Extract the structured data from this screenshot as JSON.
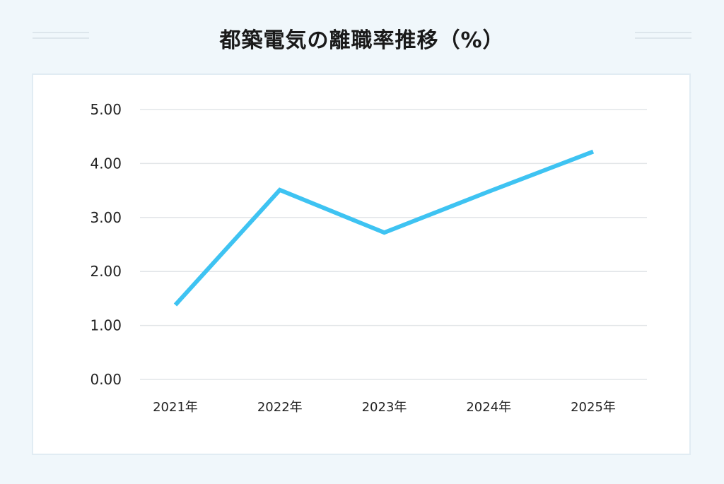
{
  "title": "都築電気の離職率推移（%）",
  "chart_data": {
    "type": "line",
    "title": "都築電気の離職率推移（%）",
    "xlabel": "",
    "ylabel": "",
    "categories": [
      "2021年",
      "2022年",
      "2023年",
      "2024年",
      "2025年"
    ],
    "series": [
      {
        "values": [
          1.38,
          3.51,
          2.72,
          3.48,
          4.22
        ]
      }
    ],
    "ylim": [
      0,
      5
    ],
    "yticks": [
      "0.00",
      "1.00",
      "2.00",
      "3.00",
      "4.00",
      "5.00"
    ],
    "grid": true,
    "legend": "none",
    "line_color": "#3ec3f2"
  }
}
